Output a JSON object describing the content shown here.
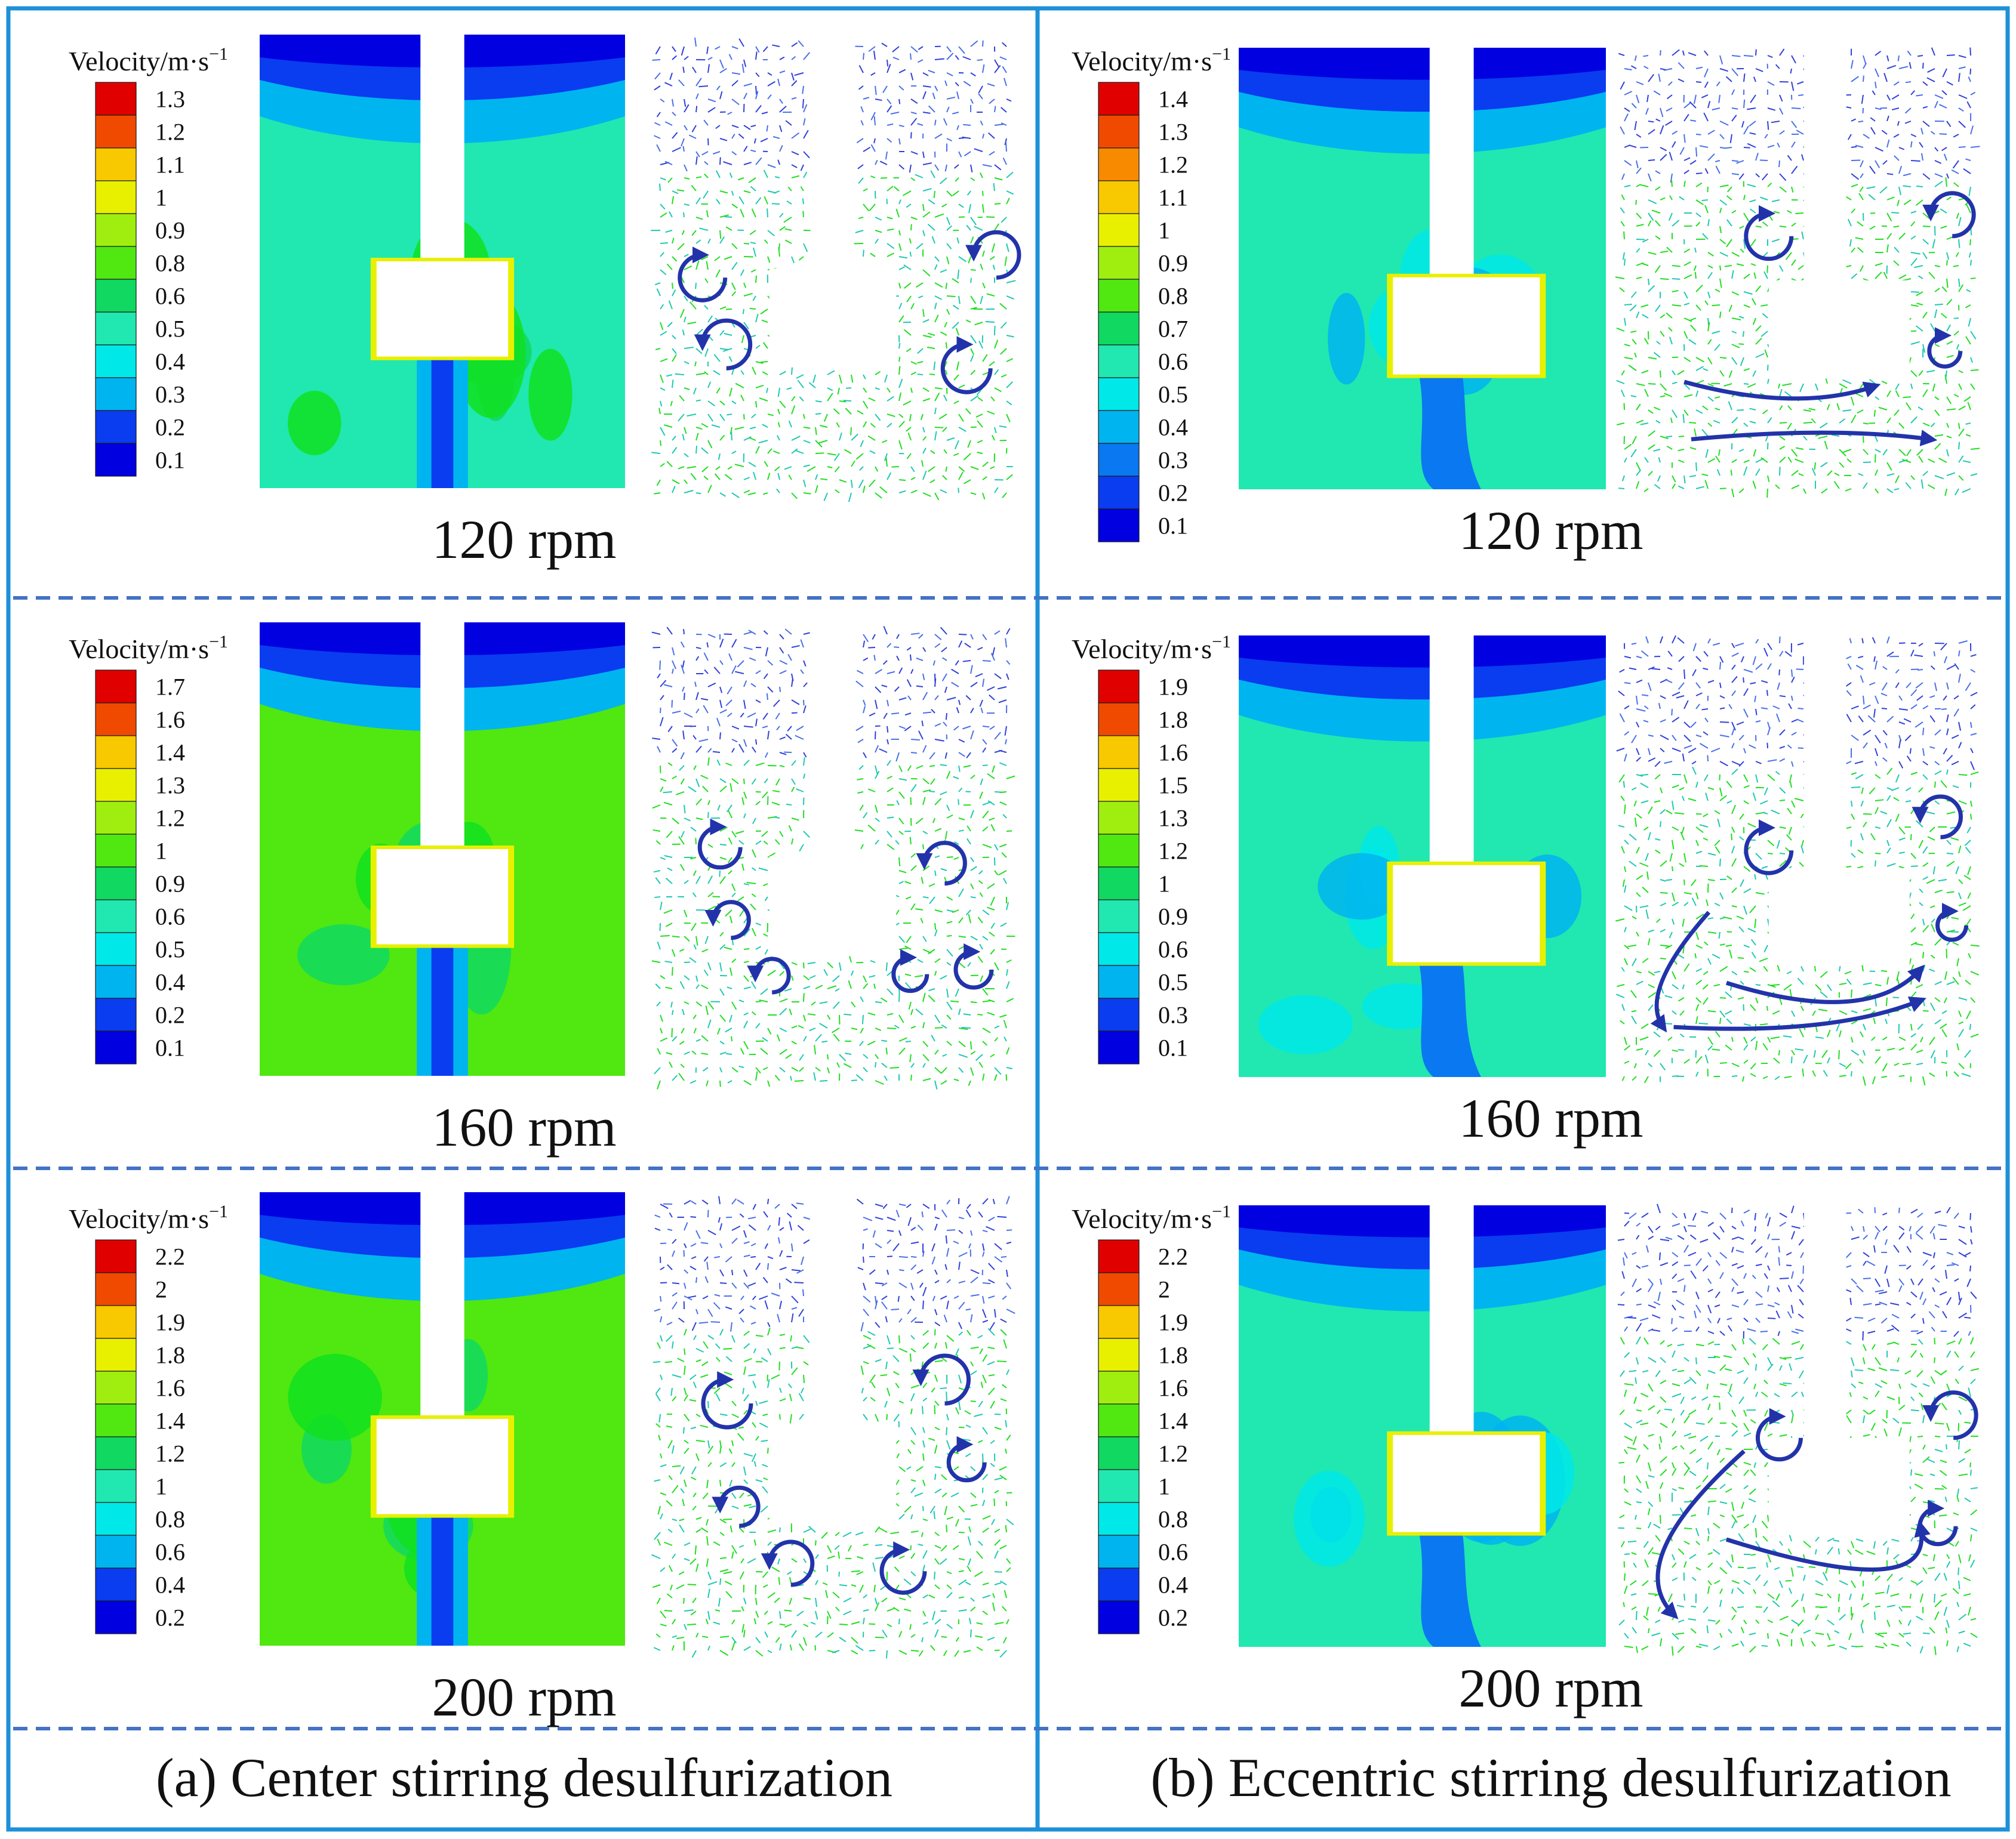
{
  "legend_title_base": "Velocity/m·s",
  "legend_title_exp": "−1",
  "captions": {
    "a": "(a) Center stirring desulfurization",
    "b": "(b) Eccentric stirring desulfurization"
  },
  "colors": {
    "border": "#1e90d8",
    "divider": "#4472c4",
    "vortex_arrow": "#2233aa",
    "colormap": [
      "#0000e0",
      "#0a3cf0",
      "#0a78f0",
      "#00b4f0",
      "#00e8e8",
      "#20e8b0",
      "#10d860",
      "#10e020",
      "#50e810",
      "#a0ee10",
      "#e8f000",
      "#f8c800",
      "#f88a00",
      "#f04a00",
      "#e00000"
    ]
  },
  "rows": [
    {
      "rpm": "120 rpm",
      "left_legend": [
        "1.3",
        "1.2",
        "1.1",
        "1",
        "0.9",
        "0.8",
        "0.6",
        "0.5",
        "0.4",
        "0.3",
        "0.2",
        "0.1"
      ],
      "right_legend": [
        "1.4",
        "1.3",
        "1.2",
        "1.1",
        "1",
        "0.9",
        "0.8",
        "0.7",
        "0.6",
        "0.5",
        "0.4",
        "0.3",
        "0.2",
        "0.1"
      ]
    },
    {
      "rpm": "160 rpm",
      "left_legend": [
        "1.7",
        "1.6",
        "1.4",
        "1.3",
        "1.2",
        "1",
        "0.9",
        "0.6",
        "0.5",
        "0.4",
        "0.2",
        "0.1"
      ],
      "right_legend": [
        "1.9",
        "1.8",
        "1.6",
        "1.5",
        "1.3",
        "1.2",
        "1",
        "0.9",
        "0.6",
        "0.5",
        "0.3",
        "0.1"
      ]
    },
    {
      "rpm": "200 rpm",
      "left_legend": [
        "2.2",
        "2",
        "1.9",
        "1.8",
        "1.6",
        "1.4",
        "1.2",
        "1",
        "0.8",
        "0.6",
        "0.4",
        "0.2"
      ],
      "right_legend": [
        "2.2",
        "2",
        "1.9",
        "1.8",
        "1.6",
        "1.4",
        "1.2",
        "1",
        "0.8",
        "0.6",
        "0.4",
        "0.2"
      ]
    }
  ]
}
